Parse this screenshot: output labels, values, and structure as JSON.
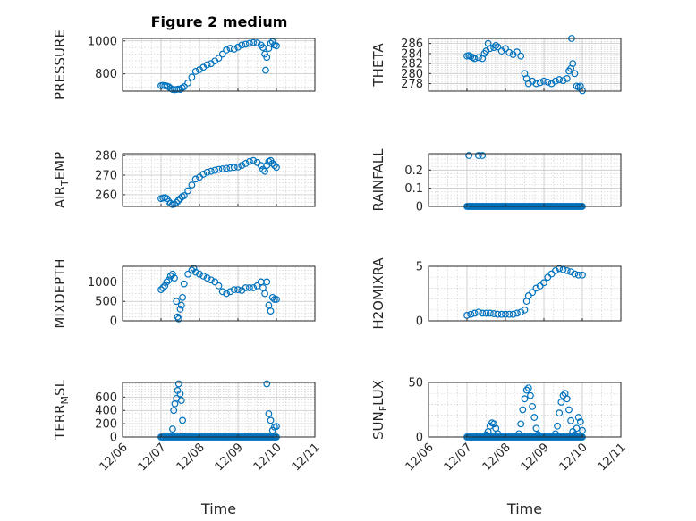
{
  "title": "Figure 2 medium",
  "chart_data": [
    {
      "type": "scatter",
      "id": "pressure",
      "ylabel": "PRESSURE",
      "xlabel": "",
      "ylim": [
        695,
        1015
      ],
      "yticks": [
        800,
        1000
      ],
      "xlim": [
        0,
        5
      ],
      "xticks": [
        0,
        1,
        2,
        3,
        4,
        5
      ],
      "xticklabels": [
        "12/06",
        "12/07",
        "12/08",
        "12/09",
        "12/10",
        "12/11"
      ],
      "grid": true,
      "points": [
        [
          1,
          728
        ],
        [
          1.05,
          730
        ],
        [
          1.1,
          728
        ],
        [
          1.15,
          726
        ],
        [
          1.2,
          722
        ],
        [
          1.25,
          712
        ],
        [
          1.3,
          705
        ],
        [
          1.35,
          703
        ],
        [
          1.4,
          705
        ],
        [
          1.45,
          708
        ],
        [
          1.5,
          705
        ],
        [
          1.55,
          715
        ],
        [
          1.6,
          722
        ],
        [
          1.7,
          745
        ],
        [
          1.8,
          780
        ],
        [
          1.9,
          815
        ],
        [
          2.0,
          825
        ],
        [
          2.1,
          840
        ],
        [
          2.2,
          855
        ],
        [
          2.3,
          862
        ],
        [
          2.4,
          878
        ],
        [
          2.5,
          895
        ],
        [
          2.6,
          920
        ],
        [
          2.7,
          945
        ],
        [
          2.8,
          955
        ],
        [
          2.9,
          950
        ],
        [
          3.0,
          962
        ],
        [
          3.1,
          975
        ],
        [
          3.2,
          980
        ],
        [
          3.3,
          985
        ],
        [
          3.4,
          990
        ],
        [
          3.5,
          988
        ],
        [
          3.6,
          975
        ],
        [
          3.65,
          960
        ],
        [
          3.7,
          920
        ],
        [
          3.72,
          822
        ],
        [
          3.75,
          900
        ],
        [
          3.8,
          955
        ],
        [
          3.85,
          985
        ],
        [
          3.9,
          995
        ],
        [
          3.95,
          975
        ],
        [
          4.0,
          970
        ]
      ]
    },
    {
      "type": "scatter",
      "id": "theta",
      "ylabel": "THETA",
      "xlabel": "",
      "ylim": [
        276.5,
        287
      ],
      "yticks": [
        278,
        280,
        282,
        284,
        286
      ],
      "xlim": [
        0,
        5
      ],
      "xticks": [
        0,
        1,
        2,
        3,
        4,
        5
      ],
      "xticklabels": [
        "12/06",
        "12/07",
        "12/08",
        "12/09",
        "12/10",
        "12/11"
      ],
      "grid": true,
      "points": [
        [
          1,
          283.5
        ],
        [
          1.05,
          283.6
        ],
        [
          1.1,
          283.4
        ],
        [
          1.15,
          283.2
        ],
        [
          1.2,
          283.0
        ],
        [
          1.3,
          283.2
        ],
        [
          1.4,
          283.0
        ],
        [
          1.45,
          284.0
        ],
        [
          1.5,
          284.5
        ],
        [
          1.55,
          286.0
        ],
        [
          1.6,
          285.0
        ],
        [
          1.7,
          285.2
        ],
        [
          1.75,
          285.6
        ],
        [
          1.8,
          285.3
        ],
        [
          1.9,
          284.5
        ],
        [
          2.0,
          285.0
        ],
        [
          2.1,
          284.2
        ],
        [
          2.2,
          283.8
        ],
        [
          2.3,
          284.3
        ],
        [
          2.4,
          283.5
        ],
        [
          2.5,
          280.0
        ],
        [
          2.55,
          279.0
        ],
        [
          2.6,
          278.0
        ],
        [
          2.7,
          278.5
        ],
        [
          2.8,
          278.0
        ],
        [
          2.9,
          278.2
        ],
        [
          3.0,
          278.5
        ],
        [
          3.1,
          278.3
        ],
        [
          3.2,
          278.0
        ],
        [
          3.3,
          278.5
        ],
        [
          3.4,
          278.8
        ],
        [
          3.5,
          278.6
        ],
        [
          3.6,
          279.0
        ],
        [
          3.65,
          280.5
        ],
        [
          3.7,
          281.0
        ],
        [
          3.72,
          287.0
        ],
        [
          3.75,
          282.0
        ],
        [
          3.8,
          280.0
        ],
        [
          3.85,
          277.5
        ],
        [
          3.9,
          277.3
        ],
        [
          3.95,
          277.5
        ],
        [
          4.0,
          276.6
        ]
      ]
    },
    {
      "type": "scatter",
      "id": "airtemp",
      "ylabel": "AIR_TEMP",
      "xlabel": "",
      "ylim": [
        254,
        281
      ],
      "yticks": [
        260,
        270,
        280
      ],
      "xlim": [
        0,
        5
      ],
      "xticks": [
        0,
        1,
        2,
        3,
        4,
        5
      ],
      "xticklabels": [
        "12/06",
        "12/07",
        "12/08",
        "12/09",
        "12/10",
        "12/11"
      ],
      "grid": true,
      "points": [
        [
          1,
          258
        ],
        [
          1.05,
          258.3
        ],
        [
          1.1,
          258.5
        ],
        [
          1.15,
          258
        ],
        [
          1.2,
          256.5
        ],
        [
          1.25,
          255.5
        ],
        [
          1.3,
          255
        ],
        [
          1.35,
          255.2
        ],
        [
          1.4,
          256
        ],
        [
          1.45,
          257
        ],
        [
          1.5,
          258
        ],
        [
          1.55,
          259
        ],
        [
          1.6,
          259.5
        ],
        [
          1.7,
          262
        ],
        [
          1.8,
          265
        ],
        [
          1.9,
          268
        ],
        [
          2.0,
          269
        ],
        [
          2.1,
          270.5
        ],
        [
          2.2,
          271.5
        ],
        [
          2.3,
          272
        ],
        [
          2.4,
          272.5
        ],
        [
          2.5,
          273
        ],
        [
          2.6,
          273.2
        ],
        [
          2.7,
          273.5
        ],
        [
          2.8,
          273.8
        ],
        [
          2.9,
          274
        ],
        [
          3.0,
          274.2
        ],
        [
          3.1,
          275
        ],
        [
          3.2,
          276
        ],
        [
          3.3,
          277
        ],
        [
          3.4,
          277.5
        ],
        [
          3.5,
          276.5
        ],
        [
          3.6,
          275
        ],
        [
          3.65,
          273
        ],
        [
          3.7,
          272
        ],
        [
          3.75,
          275
        ],
        [
          3.8,
          277
        ],
        [
          3.85,
          277.5
        ],
        [
          3.9,
          276
        ],
        [
          3.95,
          275
        ],
        [
          4.0,
          274
        ]
      ]
    },
    {
      "type": "scatter",
      "id": "rainfall",
      "ylabel": "RAINFALL",
      "xlabel": "",
      "ylim": [
        0,
        0.29
      ],
      "yticks": [
        0,
        0.1,
        0.2
      ],
      "xlim": [
        0,
        5
      ],
      "xticks": [
        0,
        1,
        2,
        3,
        4,
        5
      ],
      "xticklabels": [
        "12/06",
        "12/07",
        "12/08",
        "12/09",
        "12/10",
        "12/11"
      ],
      "grid": true,
      "points": [
        [
          1.05,
          0.28
        ],
        [
          1.3,
          0.28
        ],
        [
          1.4,
          0.28
        ]
      ],
      "baseline_range": [
        1.0,
        4.0
      ],
      "baseline_value": 0
    },
    {
      "type": "scatter",
      "id": "mixdepth",
      "ylabel": "MIXDEPTH",
      "xlabel": "",
      "ylim": [
        0,
        1400
      ],
      "yticks": [
        0,
        500,
        1000
      ],
      "xlim": [
        0,
        5
      ],
      "xticks": [
        0,
        1,
        2,
        3,
        4,
        5
      ],
      "xticklabels": [
        "12/06",
        "12/07",
        "12/08",
        "12/09",
        "12/10",
        "12/11"
      ],
      "grid": true,
      "points": [
        [
          1,
          800
        ],
        [
          1.05,
          850
        ],
        [
          1.1,
          900
        ],
        [
          1.15,
          1000
        ],
        [
          1.2,
          1050
        ],
        [
          1.25,
          1150
        ],
        [
          1.3,
          1200
        ],
        [
          1.35,
          1100
        ],
        [
          1.4,
          500
        ],
        [
          1.43,
          100
        ],
        [
          1.46,
          50
        ],
        [
          1.5,
          300
        ],
        [
          1.53,
          400
        ],
        [
          1.56,
          600
        ],
        [
          1.6,
          950
        ],
        [
          1.7,
          1200
        ],
        [
          1.8,
          1300
        ],
        [
          1.85,
          1350
        ],
        [
          1.9,
          1250
        ],
        [
          2.0,
          1200
        ],
        [
          2.1,
          1150
        ],
        [
          2.2,
          1100
        ],
        [
          2.3,
          1050
        ],
        [
          2.4,
          1000
        ],
        [
          2.5,
          900
        ],
        [
          2.6,
          750
        ],
        [
          2.7,
          700
        ],
        [
          2.8,
          750
        ],
        [
          2.9,
          800
        ],
        [
          3.0,
          800
        ],
        [
          3.1,
          780
        ],
        [
          3.2,
          850
        ],
        [
          3.3,
          850
        ],
        [
          3.4,
          850
        ],
        [
          3.5,
          900
        ],
        [
          3.6,
          1000
        ],
        [
          3.65,
          850
        ],
        [
          3.7,
          700
        ],
        [
          3.75,
          1000
        ],
        [
          3.8,
          400
        ],
        [
          3.85,
          250
        ],
        [
          3.9,
          600
        ],
        [
          3.95,
          550
        ],
        [
          4.0,
          550
        ]
      ]
    },
    {
      "type": "scatter",
      "id": "h2omixra",
      "ylabel": "H2OMIXRA",
      "xlabel": "",
      "ylim": [
        0,
        5
      ],
      "yticks": [
        0,
        5
      ],
      "xlim": [
        0,
        5
      ],
      "xticks": [
        0,
        1,
        2,
        3,
        4,
        5
      ],
      "xticklabels": [
        "12/06",
        "12/07",
        "12/08",
        "12/09",
        "12/10",
        "12/11"
      ],
      "grid": true,
      "points": [
        [
          1,
          0.5
        ],
        [
          1.1,
          0.6
        ],
        [
          1.2,
          0.7
        ],
        [
          1.3,
          0.8
        ],
        [
          1.4,
          0.7
        ],
        [
          1.5,
          0.7
        ],
        [
          1.6,
          0.7
        ],
        [
          1.7,
          0.65
        ],
        [
          1.8,
          0.6
        ],
        [
          1.9,
          0.6
        ],
        [
          2.0,
          0.6
        ],
        [
          2.1,
          0.6
        ],
        [
          2.2,
          0.6
        ],
        [
          2.3,
          0.7
        ],
        [
          2.4,
          0.8
        ],
        [
          2.5,
          1.0
        ],
        [
          2.55,
          1.8
        ],
        [
          2.6,
          2.3
        ],
        [
          2.7,
          2.6
        ],
        [
          2.8,
          3.0
        ],
        [
          2.9,
          3.2
        ],
        [
          3.0,
          3.5
        ],
        [
          3.1,
          4.0
        ],
        [
          3.2,
          4.3
        ],
        [
          3.3,
          4.6
        ],
        [
          3.4,
          4.8
        ],
        [
          3.5,
          4.7
        ],
        [
          3.6,
          4.6
        ],
        [
          3.7,
          4.5
        ],
        [
          3.8,
          4.3
        ],
        [
          3.9,
          4.2
        ],
        [
          4.0,
          4.2
        ]
      ]
    },
    {
      "type": "scatter",
      "id": "terrmsl",
      "ylabel": "TERR_MSL",
      "xlabel": "Time",
      "ylim": [
        0,
        820
      ],
      "yticks": [
        0,
        200,
        400,
        600
      ],
      "xlim": [
        0,
        5
      ],
      "xticks": [
        0,
        1,
        2,
        3,
        4,
        5
      ],
      "xticklabels": [
        "12/06",
        "12/07",
        "12/08",
        "12/09",
        "12/10",
        "12/11"
      ],
      "grid": true,
      "points": [
        [
          1.3,
          120
        ],
        [
          1.33,
          400
        ],
        [
          1.36,
          500
        ],
        [
          1.4,
          580
        ],
        [
          1.43,
          700
        ],
        [
          1.46,
          800
        ],
        [
          1.5,
          650
        ],
        [
          1.53,
          550
        ],
        [
          1.56,
          250
        ],
        [
          1.6,
          10
        ],
        [
          3.75,
          800
        ],
        [
          3.8,
          350
        ],
        [
          3.85,
          250
        ],
        [
          3.9,
          100
        ],
        [
          3.95,
          150
        ],
        [
          4.0,
          160
        ]
      ],
      "baseline_range": [
        1.0,
        4.0
      ],
      "baseline_value": 0
    },
    {
      "type": "scatter",
      "id": "sunflux",
      "ylabel": "SUN_FLUX",
      "xlabel": "Time",
      "ylim": [
        0,
        50
      ],
      "yticks": [
        0,
        50
      ],
      "xlim": [
        0,
        5
      ],
      "xticks": [
        0,
        1,
        2,
        3,
        4,
        5
      ],
      "xticklabels": [
        "12/06",
        "12/07",
        "12/08",
        "12/09",
        "12/10",
        "12/11"
      ],
      "grid": true,
      "points": [
        [
          1.5,
          2
        ],
        [
          1.55,
          5
        ],
        [
          1.6,
          10
        ],
        [
          1.65,
          13
        ],
        [
          1.7,
          12
        ],
        [
          1.75,
          8
        ],
        [
          1.8,
          3
        ],
        [
          2.35,
          3
        ],
        [
          2.4,
          12
        ],
        [
          2.45,
          25
        ],
        [
          2.5,
          35
        ],
        [
          2.55,
          43
        ],
        [
          2.6,
          45
        ],
        [
          2.65,
          38
        ],
        [
          2.7,
          28
        ],
        [
          2.75,
          18
        ],
        [
          2.8,
          8
        ],
        [
          2.85,
          2
        ],
        [
          3.3,
          3
        ],
        [
          3.35,
          10
        ],
        [
          3.4,
          22
        ],
        [
          3.45,
          32
        ],
        [
          3.5,
          38
        ],
        [
          3.55,
          40
        ],
        [
          3.6,
          35
        ],
        [
          3.65,
          25
        ],
        [
          3.7,
          15
        ],
        [
          3.75,
          5
        ],
        [
          3.8,
          2
        ],
        [
          3.85,
          8
        ],
        [
          3.9,
          18
        ],
        [
          3.95,
          14
        ],
        [
          4.0,
          6
        ]
      ],
      "baseline_range": [
        1.0,
        4.0
      ],
      "baseline_value": 0
    }
  ]
}
